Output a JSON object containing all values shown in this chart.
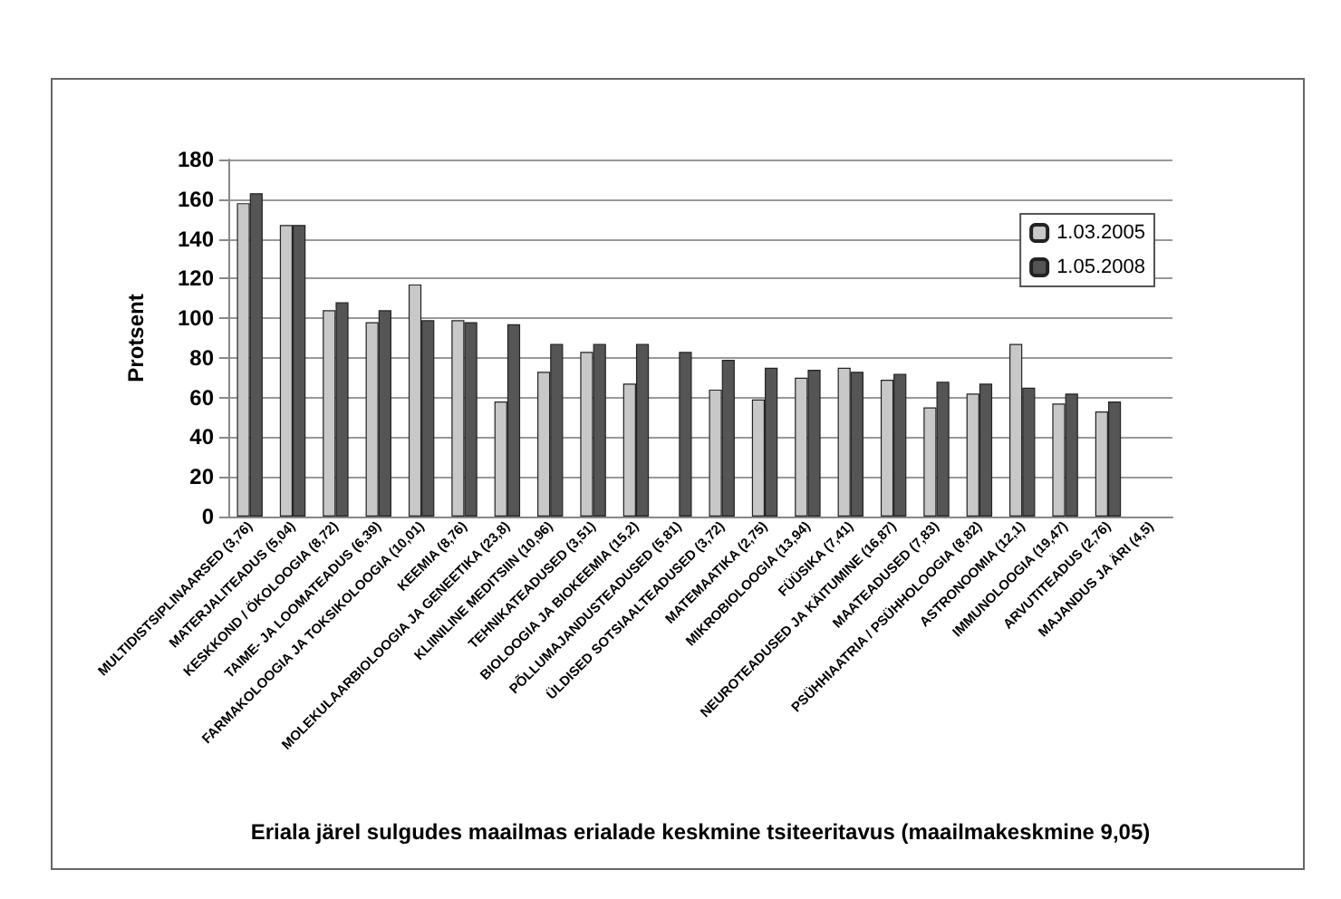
{
  "chart_data": {
    "type": "bar",
    "xlabel": "Eriala järel sulgudes maailmas erialade keskmine tsiteeritavus (maailmakeskmine 9,05)",
    "ylabel": "Protsent",
    "categories": [
      "MULTIDISTSIPLINAARSED (3,76)",
      "MATERJALITEADUS (5,04)",
      "KESKKOND / ÖKOLOOGIA (8,72)",
      "TAIME- JA LOOMATEADUS (6,39)",
      "FARMAKOLOOGIA JA TOKSIKOLOOGIA (10,01)",
      "KEEMIA (8,76)",
      "MOLEKULAARBIOLOOGIA JA GENEETIKA (23,8)",
      "KLIINILINE MEDITSIIN (10,96)",
      "TEHNIKATEADUSED (3,51)",
      "BIOLOOGIA JA BIOKEEMIA (15,2)",
      "PÕLLUMAJANDUSTEADUSED (5,81)",
      "ÜLDISED SOTSIAALTEADUSED (3,72)",
      "MATEMAATIKA (2,75)",
      "MIKROBIOLOOGIA (13,94)",
      "FÜÜSIKA (7,41)",
      "NEUROTEADUSED JA KÄITUMINE (16,87)",
      "MAATEADUSED (7,83)",
      "PSÜHHIAATRIA / PSÜHHOLOOGIA (8,82)",
      "ASTRONOOMIA (12,1)",
      "IMMUNOLOOGIA (19,47)",
      "ARVUTITEADUS (2,76)",
      "MAJANDUS JA ÄRI (4,5)"
    ],
    "series": [
      {
        "name": "1.03.2005",
        "color": "#c8c8c8",
        "values": [
          158,
          147,
          104,
          98,
          117,
          99,
          58,
          73,
          83,
          67,
          null,
          64,
          59,
          70,
          75,
          69,
          55,
          62,
          87,
          57,
          53,
          null
        ]
      },
      {
        "name": "1.05.2008",
        "color": "#555555",
        "values": [
          163,
          147,
          108,
          104,
          99,
          98,
          97,
          87,
          87,
          87,
          83,
          79,
          75,
          74,
          73,
          72,
          68,
          67,
          65,
          62,
          58,
          null
        ]
      }
    ],
    "ylim": [
      0,
      180
    ],
    "yticks": [
      0,
      20,
      40,
      60,
      80,
      100,
      120,
      140,
      160,
      180
    ],
    "grid": "y",
    "legend": "top right"
  }
}
